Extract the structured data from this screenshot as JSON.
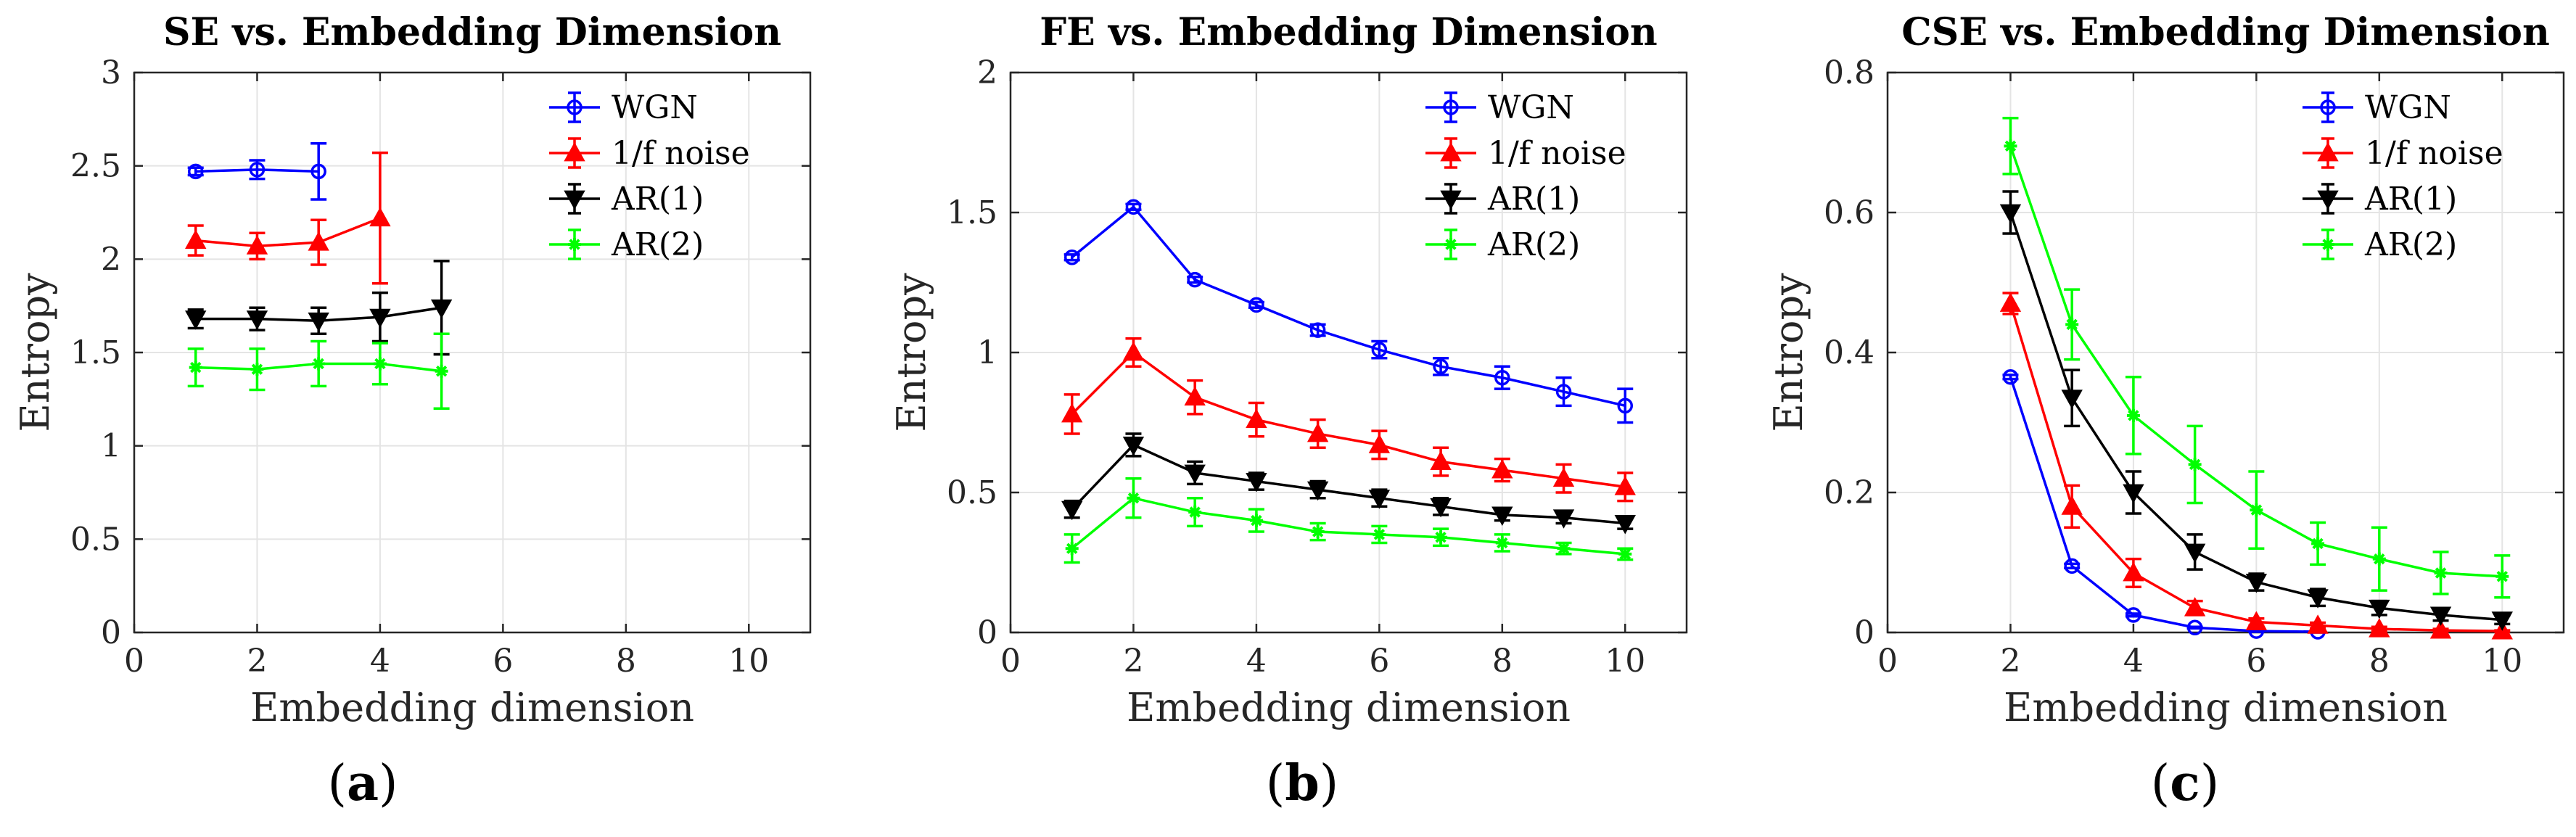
{
  "panel_labels": [
    "a",
    "b",
    "c"
  ],
  "chart_data": [
    {
      "type": "line",
      "title": "SE vs. Embedding Dimension",
      "xlabel": "Embedding dimension",
      "ylabel": "Entropy",
      "xlim": [
        0,
        11
      ],
      "ylim": [
        0,
        3
      ],
      "xticks": [
        0,
        2,
        4,
        6,
        8,
        10
      ],
      "yticks": [
        0,
        0.5,
        1,
        1.5,
        2,
        2.5,
        3
      ],
      "ytick_labels": [
        "0",
        "0.5",
        "1",
        "1.5",
        "2",
        "2.5",
        "3"
      ],
      "grid": true,
      "legend": "top-right",
      "series": [
        {
          "name": "WGN",
          "color": "#0000ff",
          "marker": "circle",
          "x": [
            1,
            2,
            3
          ],
          "values": [
            2.47,
            2.48,
            2.47
          ],
          "error": [
            0.02,
            0.05,
            0.15
          ]
        },
        {
          "name": "1/f noise",
          "color": "#ff0000",
          "marker": "triangle-up",
          "x": [
            1,
            2,
            3,
            4
          ],
          "values": [
            2.1,
            2.07,
            2.09,
            2.22
          ],
          "error": [
            0.08,
            0.07,
            0.12,
            0.35
          ]
        },
        {
          "name": "AR(1)",
          "color": "#000000",
          "marker": "triangle-down",
          "x": [
            1,
            2,
            3,
            4,
            5
          ],
          "values": [
            1.68,
            1.68,
            1.67,
            1.69,
            1.74
          ],
          "error": [
            0.05,
            0.06,
            0.07,
            0.13,
            0.25
          ]
        },
        {
          "name": "AR(2)",
          "color": "#00ff00",
          "marker": "star",
          "x": [
            1,
            2,
            3,
            4,
            5
          ],
          "values": [
            1.42,
            1.41,
            1.44,
            1.44,
            1.4
          ],
          "error": [
            0.1,
            0.11,
            0.12,
            0.11,
            0.2
          ]
        }
      ]
    },
    {
      "type": "line",
      "title": "FE vs. Embedding Dimension",
      "xlabel": "Embedding dimension",
      "ylabel": "Entropy",
      "xlim": [
        0,
        11
      ],
      "ylim": [
        0,
        2
      ],
      "xticks": [
        0,
        2,
        4,
        6,
        8,
        10
      ],
      "yticks": [
        0,
        0.5,
        1,
        1.5,
        2
      ],
      "ytick_labels": [
        "0",
        "0.5",
        "1",
        "1.5",
        "2"
      ],
      "grid": true,
      "legend": "top-right",
      "series": [
        {
          "name": "WGN",
          "color": "#0000ff",
          "marker": "circle",
          "x": [
            1,
            2,
            3,
            4,
            5,
            6,
            7,
            8,
            9,
            10
          ],
          "values": [
            1.34,
            1.52,
            1.26,
            1.17,
            1.08,
            1.01,
            0.95,
            0.91,
            0.86,
            0.81
          ],
          "error": [
            0.01,
            0.01,
            0.01,
            0.01,
            0.02,
            0.03,
            0.03,
            0.04,
            0.05,
            0.06
          ]
        },
        {
          "name": "1/f noise",
          "color": "#ff0000",
          "marker": "triangle-up",
          "x": [
            1,
            2,
            3,
            4,
            5,
            6,
            7,
            8,
            9,
            10
          ],
          "values": [
            0.78,
            1.0,
            0.84,
            0.76,
            0.71,
            0.67,
            0.61,
            0.58,
            0.55,
            0.52
          ],
          "error": [
            0.07,
            0.05,
            0.06,
            0.06,
            0.05,
            0.05,
            0.05,
            0.04,
            0.05,
            0.05
          ]
        },
        {
          "name": "AR(1)",
          "color": "#000000",
          "marker": "triangle-down",
          "x": [
            1,
            2,
            3,
            4,
            5,
            6,
            7,
            8,
            9,
            10
          ],
          "values": [
            0.44,
            0.67,
            0.57,
            0.54,
            0.51,
            0.48,
            0.45,
            0.42,
            0.41,
            0.39
          ],
          "error": [
            0.03,
            0.04,
            0.04,
            0.03,
            0.03,
            0.03,
            0.03,
            0.02,
            0.02,
            0.02
          ]
        },
        {
          "name": "AR(2)",
          "color": "#00ff00",
          "marker": "star",
          "x": [
            1,
            2,
            3,
            4,
            5,
            6,
            7,
            8,
            9,
            10
          ],
          "values": [
            0.3,
            0.48,
            0.43,
            0.4,
            0.36,
            0.35,
            0.34,
            0.32,
            0.3,
            0.28
          ],
          "error": [
            0.05,
            0.07,
            0.05,
            0.04,
            0.03,
            0.03,
            0.03,
            0.03,
            0.02,
            0.02
          ]
        }
      ]
    },
    {
      "type": "line",
      "title": "CSE vs. Embedding Dimension",
      "xlabel": "Embedding dimension",
      "ylabel": "Entropy",
      "xlim": [
        0,
        11
      ],
      "ylim": [
        0,
        0.8
      ],
      "xticks": [
        0,
        2,
        4,
        6,
        8,
        10
      ],
      "yticks": [
        0,
        0.2,
        0.4,
        0.6,
        0.8
      ],
      "ytick_labels": [
        "0",
        "0.2",
        "0.4",
        "0.6",
        "0.8"
      ],
      "grid": true,
      "legend": "top-right",
      "series": [
        {
          "name": "WGN",
          "color": "#0000ff",
          "marker": "circle",
          "x": [
            2,
            3,
            4,
            5,
            6,
            7
          ],
          "values": [
            0.365,
            0.095,
            0.025,
            0.007,
            0.002,
            0.001
          ],
          "error": [
            0.003,
            0.003,
            0.002,
            0.001,
            0.001,
            0.001
          ]
        },
        {
          "name": "1/f noise",
          "color": "#ff0000",
          "marker": "triangle-up",
          "x": [
            2,
            3,
            4,
            5,
            6,
            7,
            8,
            9,
            10
          ],
          "values": [
            0.47,
            0.18,
            0.085,
            0.035,
            0.015,
            0.01,
            0.005,
            0.003,
            0.002
          ],
          "error": [
            0.015,
            0.03,
            0.02,
            0.01,
            0.005,
            0.004,
            0.003,
            0.002,
            0.001
          ]
        },
        {
          "name": "AR(1)",
          "color": "#000000",
          "marker": "triangle-down",
          "x": [
            2,
            3,
            4,
            5,
            6,
            7,
            8,
            9,
            10
          ],
          "values": [
            0.6,
            0.335,
            0.2,
            0.115,
            0.072,
            0.05,
            0.035,
            0.025,
            0.018
          ],
          "error": [
            0.03,
            0.04,
            0.03,
            0.025,
            0.012,
            0.012,
            0.01,
            0.008,
            0.006
          ]
        },
        {
          "name": "AR(2)",
          "color": "#00ff00",
          "marker": "star",
          "x": [
            2,
            3,
            4,
            5,
            6,
            7,
            8,
            9,
            10
          ],
          "values": [
            0.695,
            0.44,
            0.31,
            0.24,
            0.175,
            0.127,
            0.105,
            0.085,
            0.08
          ],
          "error": [
            0.04,
            0.05,
            0.055,
            0.055,
            0.055,
            0.03,
            0.045,
            0.03,
            0.03
          ]
        }
      ]
    }
  ]
}
